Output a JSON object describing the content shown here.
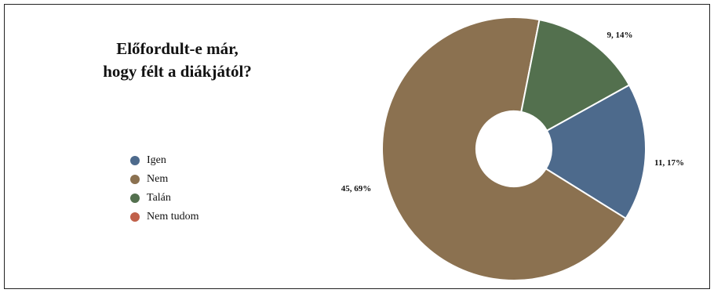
{
  "chart_data": {
    "type": "pie",
    "title_lines": [
      "Előfordult-e már,",
      "hogy félt a diákjától?"
    ],
    "categories": [
      "Igen",
      "Nem",
      "Talán",
      "Nem tudom"
    ],
    "values": [
      11,
      45,
      9,
      0
    ],
    "data_labels": [
      "11, 17%",
      "45, 69%",
      "9, 14%",
      ""
    ],
    "colors": [
      "#4d6a8c",
      "#8b7150",
      "#53704e",
      "#c0604a"
    ],
    "legend_position": "left"
  }
}
